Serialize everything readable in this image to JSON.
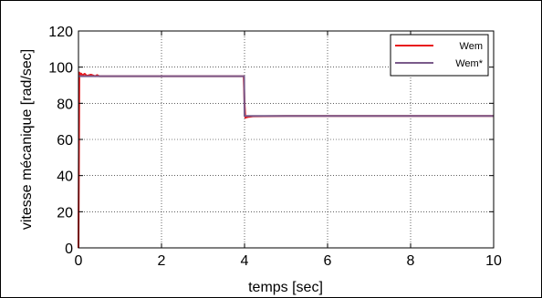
{
  "chart_data": {
    "type": "line",
    "xlabel": "temps [sec]",
    "ylabel": "vitesse mécanique [rad/sec]",
    "xlim": [
      0,
      10
    ],
    "ylim": [
      0,
      120
    ],
    "xticks": [
      0,
      2,
      4,
      6,
      8,
      10
    ],
    "yticks": [
      0,
      20,
      40,
      60,
      80,
      100,
      120
    ],
    "grid": true,
    "legend_position": "top-right",
    "series": [
      {
        "name": "Wem",
        "color": "#e8161a",
        "x": [
          0,
          0.02,
          0.04,
          0.06,
          0.1,
          0.15,
          0.2,
          0.3,
          0.4,
          0.45,
          0.5,
          1,
          2,
          3,
          3.98,
          4.0,
          4.02,
          4.06,
          4.1,
          4.2,
          5,
          6,
          7,
          8,
          9,
          10
        ],
        "y": [
          0,
          97,
          95.5,
          96.5,
          95.5,
          96.3,
          95.2,
          95.8,
          95.0,
          95.6,
          95,
          95,
          95,
          95,
          95,
          80,
          72,
          72.3,
          72.5,
          72.8,
          73,
          73,
          73,
          73,
          73,
          73
        ]
      },
      {
        "name": "Wem*",
        "color": "#7a5a8a",
        "x": [
          0,
          3.99,
          4.0,
          10
        ],
        "y": [
          95,
          95,
          73,
          73
        ]
      }
    ]
  }
}
